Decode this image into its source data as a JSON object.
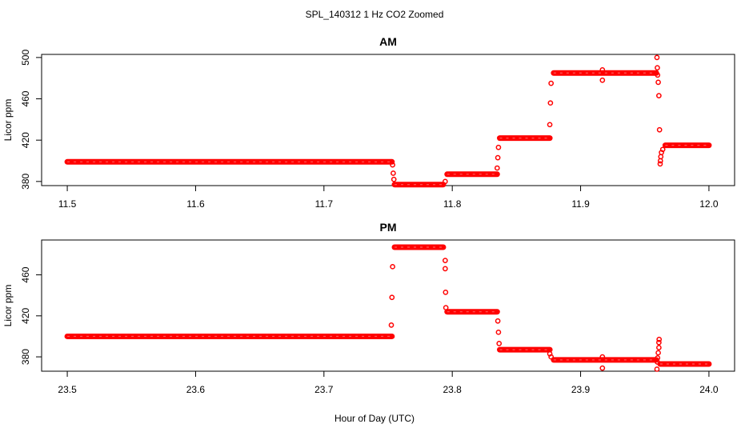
{
  "figure_title": "SPL_140312  1 Hz CO2 Zoomed",
  "x_label": "Hour of Day (UTC)",
  "colors": {
    "points": "#ff0000",
    "axis": "#000000"
  },
  "chart_data": [
    {
      "type": "scatter",
      "title": "AM",
      "ylabel": "Licor ppm",
      "xlim": [
        11.48,
        12.02
      ],
      "ylim": [
        376,
        503
      ],
      "xticks": [
        11.5,
        11.6,
        11.7,
        11.8,
        11.9,
        12.0
      ],
      "xtick_labels": [
        "11.5",
        "11.6",
        "11.7",
        "11.8",
        "11.9",
        "12.0"
      ],
      "yticks": [
        380,
        420,
        460,
        500
      ],
      "ytick_labels": [
        "380",
        "420",
        "460",
        "500"
      ],
      "segments": [
        {
          "x0": 11.5,
          "x1": 11.753,
          "y": 399
        },
        {
          "x0": 11.755,
          "x1": 11.793,
          "y": 377
        },
        {
          "x0": 11.796,
          "x1": 11.835,
          "y": 387
        },
        {
          "x0": 11.837,
          "x1": 11.876,
          "y": 422
        },
        {
          "x0": 11.879,
          "x1": 11.959,
          "y": 485
        },
        {
          "x0": 11.966,
          "x1": 12.0,
          "y": 415
        }
      ],
      "points": [
        [
          11.7535,
          396
        ],
        [
          11.754,
          388
        ],
        [
          11.7545,
          382
        ],
        [
          11.7945,
          380
        ],
        [
          11.835,
          393
        ],
        [
          11.8355,
          403
        ],
        [
          11.836,
          413
        ],
        [
          11.876,
          435
        ],
        [
          11.8765,
          456
        ],
        [
          11.877,
          475
        ],
        [
          11.917,
          478
        ],
        [
          11.917,
          488
        ],
        [
          11.9595,
          500
        ],
        [
          11.9598,
          490
        ],
        [
          11.96,
          483
        ],
        [
          11.9605,
          476
        ],
        [
          11.961,
          463
        ],
        [
          11.9615,
          430
        ],
        [
          11.962,
          397
        ],
        [
          11.9622,
          400
        ],
        [
          11.9625,
          404
        ],
        [
          11.963,
          408
        ],
        [
          11.964,
          411
        ]
      ]
    },
    {
      "type": "scatter",
      "title": "PM",
      "ylabel": "Licor ppm",
      "xlim": [
        23.48,
        24.02
      ],
      "ylim": [
        366,
        494
      ],
      "xticks": [
        23.5,
        23.6,
        23.7,
        23.8,
        23.9,
        24.0
      ],
      "xtick_labels": [
        "23.5",
        "23.6",
        "23.7",
        "23.8",
        "23.9",
        "24.0"
      ],
      "yticks": [
        380,
        420,
        460
      ],
      "ytick_labels": [
        "380",
        "420",
        "460"
      ],
      "segments": [
        {
          "x0": 23.5,
          "x1": 23.753,
          "y": 400
        },
        {
          "x0": 23.755,
          "x1": 23.793,
          "y": 487
        },
        {
          "x0": 23.796,
          "x1": 23.835,
          "y": 424
        },
        {
          "x0": 23.837,
          "x1": 23.876,
          "y": 387
        },
        {
          "x0": 23.879,
          "x1": 23.959,
          "y": 377
        },
        {
          "x0": 23.962,
          "x1": 24.0,
          "y": 373
        }
      ],
      "points": [
        [
          23.7525,
          411
        ],
        [
          23.753,
          438
        ],
        [
          23.7535,
          468
        ],
        [
          23.7945,
          474
        ],
        [
          23.7945,
          466
        ],
        [
          23.7948,
          443
        ],
        [
          23.795,
          428
        ],
        [
          23.8355,
          415
        ],
        [
          23.836,
          404
        ],
        [
          23.8365,
          393
        ],
        [
          23.876,
          383
        ],
        [
          23.877,
          380
        ],
        [
          23.917,
          380
        ],
        [
          23.917,
          369
        ],
        [
          23.9595,
          368
        ],
        [
          23.9598,
          375
        ],
        [
          23.96,
          379
        ],
        [
          23.9605,
          384
        ],
        [
          23.961,
          389
        ],
        [
          23.961,
          394
        ],
        [
          23.9612,
          397
        ]
      ]
    }
  ]
}
